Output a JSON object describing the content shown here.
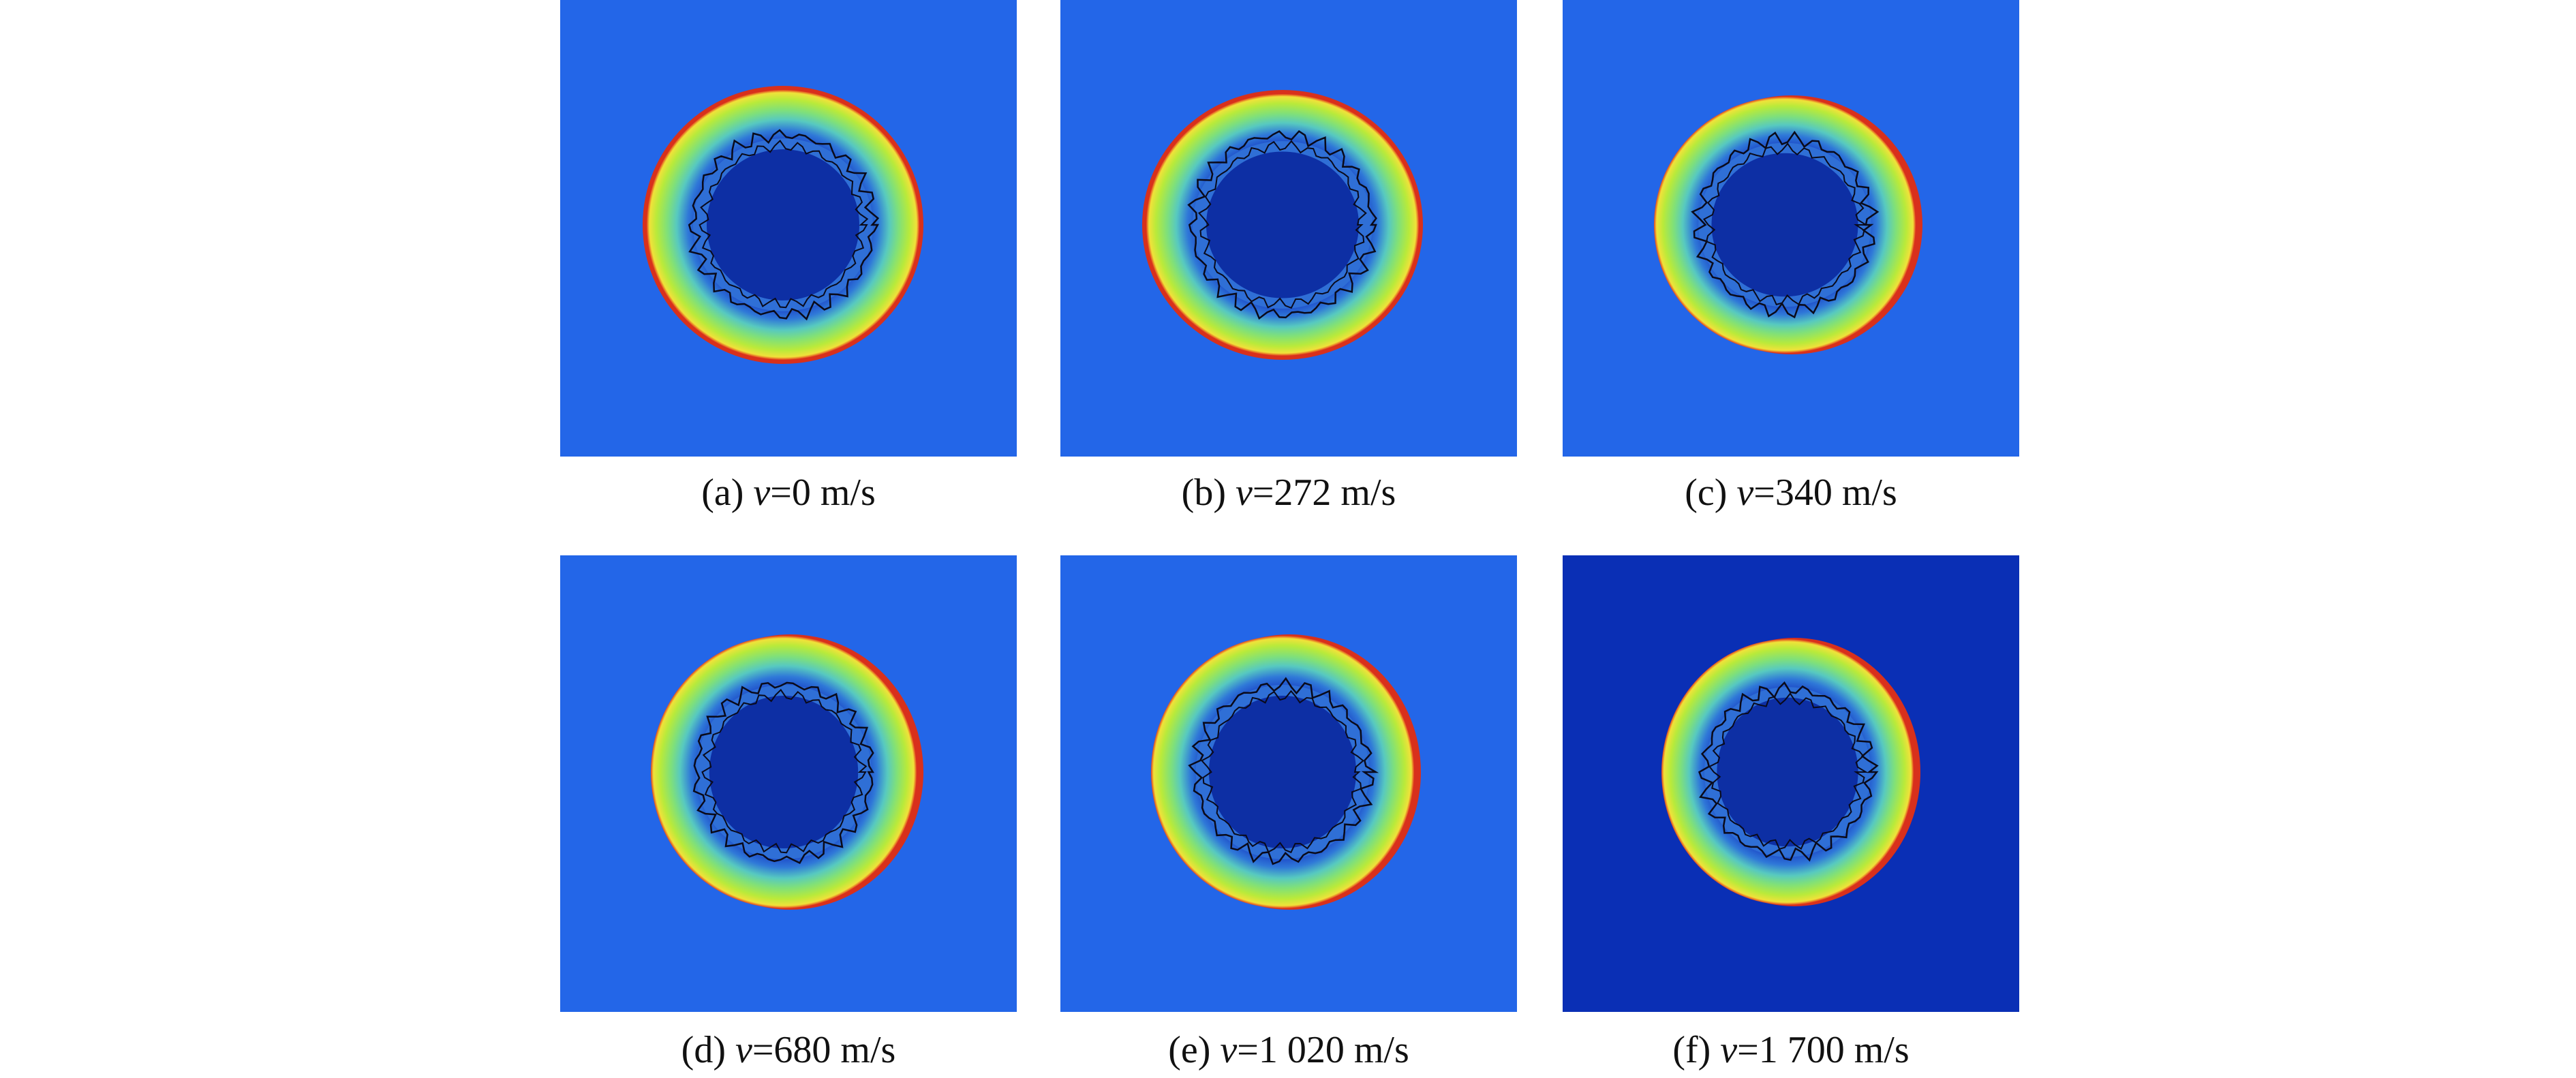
{
  "figure": {
    "panels": [
      {
        "label": "(a)",
        "variable": "v",
        "value_text": "=0 m/s",
        "velocity_m_s": 0,
        "background": "#2366e8"
      },
      {
        "label": "(b)",
        "variable": "v",
        "value_text": "=272 m/s",
        "velocity_m_s": 272,
        "background": "#2366e8"
      },
      {
        "label": "(c)",
        "variable": "v",
        "value_text": "=340 m/s",
        "velocity_m_s": 340,
        "background": "#2366e8"
      },
      {
        "label": "(d)",
        "variable": "v",
        "value_text": "=680 m/s",
        "velocity_m_s": 680,
        "background": "#2366e8"
      },
      {
        "label": "(e)",
        "variable": "v",
        "value_text": "=1 020 m/s",
        "velocity_m_s": 1020,
        "background": "#2366e8"
      },
      {
        "label": "(f)",
        "variable": "v",
        "value_text": "=1 700 m/s",
        "velocity_m_s": 1700,
        "background": "#0a2fb5"
      }
    ]
  }
}
